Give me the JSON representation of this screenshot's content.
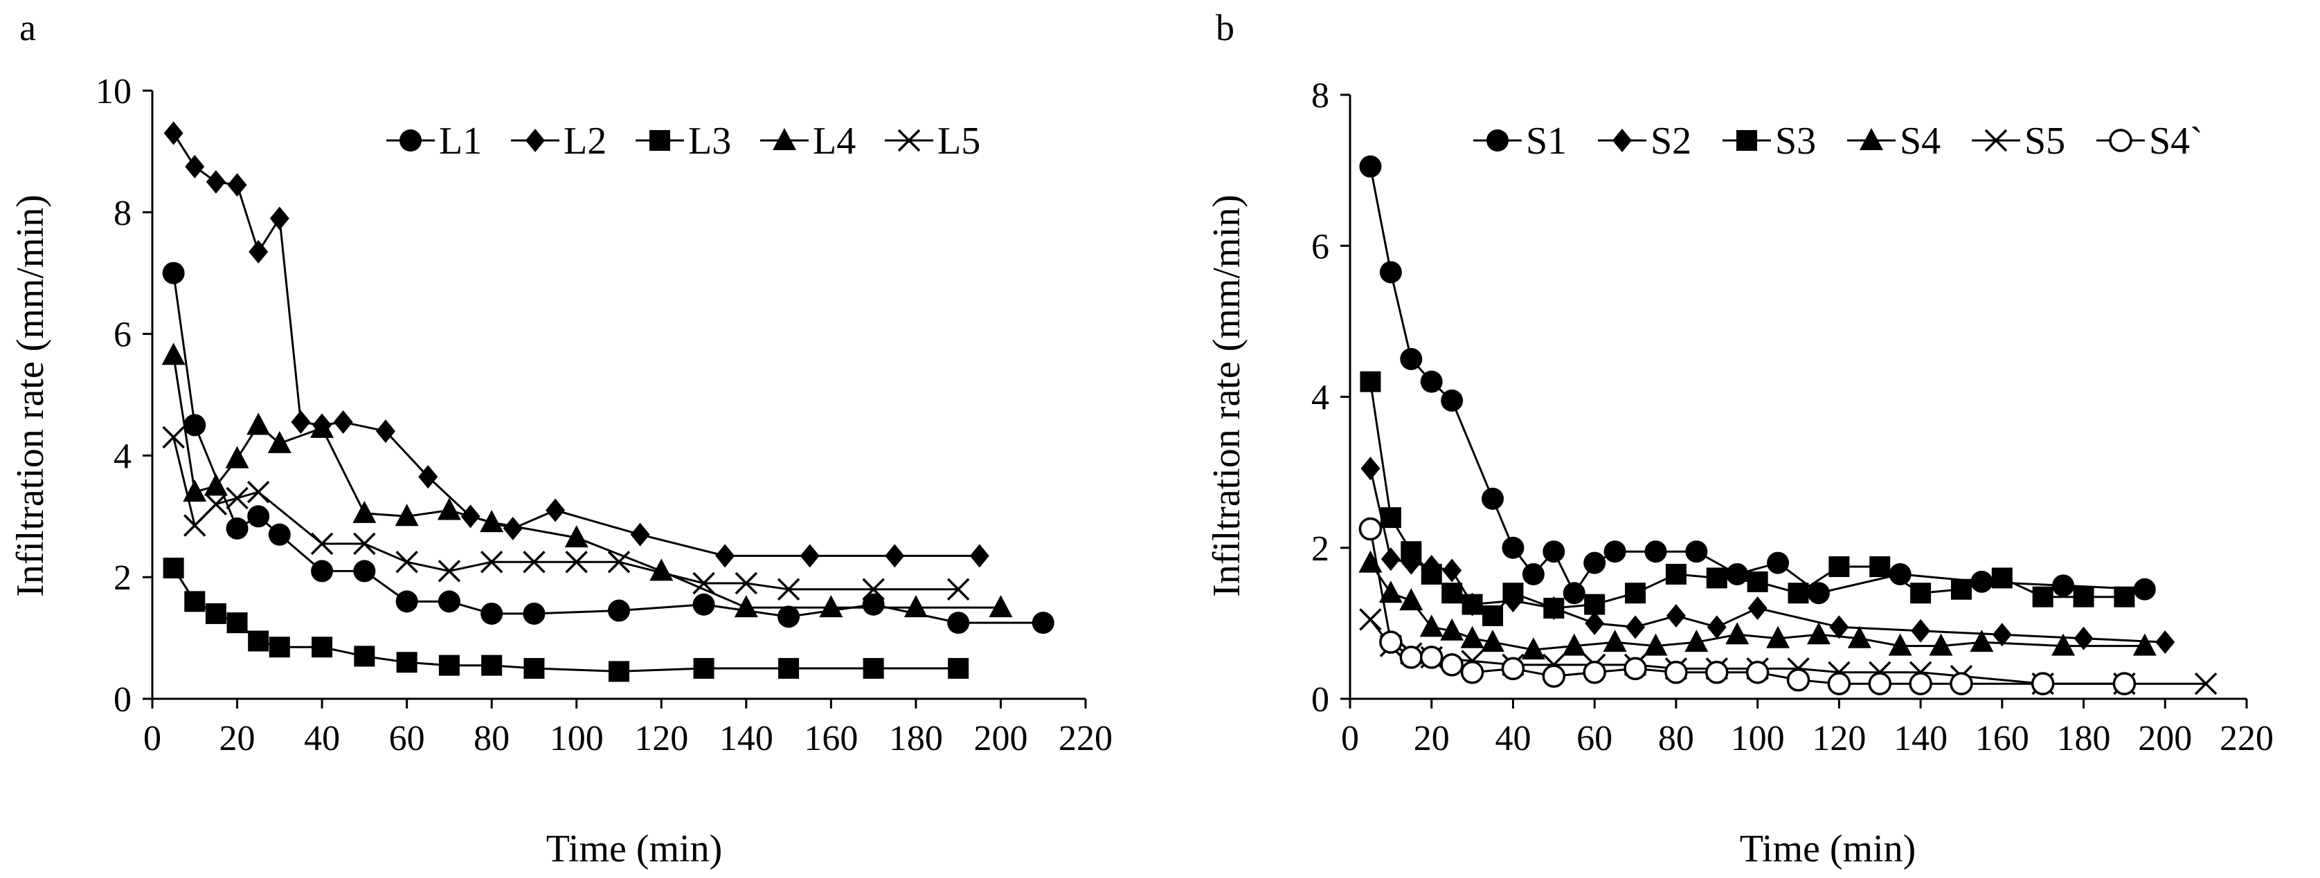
{
  "chart_data": [
    {
      "panel": "a",
      "type": "line",
      "title": "",
      "xlabel": "Time (min)",
      "ylabel": "Infiltration rate (mm/min)",
      "xlim": [
        0,
        220
      ],
      "ylim": [
        0,
        10
      ],
      "xticks": [
        0,
        20,
        40,
        60,
        80,
        100,
        120,
        140,
        160,
        180,
        200,
        220
      ],
      "yticks": [
        0,
        2,
        4,
        6,
        8,
        10
      ],
      "legend_position": "top-right",
      "series": [
        {
          "name": "L1",
          "marker": "circle-filled",
          "x": [
            5,
            10,
            20,
            25,
            30,
            40,
            50,
            60,
            70,
            80,
            90,
            110,
            130,
            150,
            170,
            190,
            210
          ],
          "y": [
            7.0,
            4.5,
            2.8,
            3.0,
            2.7,
            2.1,
            2.1,
            1.6,
            1.6,
            1.4,
            1.4,
            1.45,
            1.55,
            1.35,
            1.55,
            1.25,
            1.25
          ]
        },
        {
          "name": "L2",
          "marker": "diamond-filled",
          "x": [
            5,
            10,
            15,
            20,
            25,
            30,
            35,
            40,
            45,
            55,
            65,
            75,
            85,
            95,
            115,
            135,
            155,
            175,
            195
          ],
          "y": [
            9.3,
            8.75,
            8.5,
            8.45,
            7.35,
            7.9,
            4.55,
            4.5,
            4.55,
            4.4,
            3.65,
            3.0,
            2.8,
            3.1,
            2.7,
            2.35,
            2.35,
            2.35,
            2.35
          ]
        },
        {
          "name": "L3",
          "marker": "square-filled",
          "x": [
            5,
            10,
            15,
            20,
            25,
            30,
            40,
            50,
            60,
            70,
            80,
            90,
            110,
            130,
            150,
            170,
            190
          ],
          "y": [
            2.15,
            1.6,
            1.4,
            1.25,
            0.95,
            0.85,
            0.85,
            0.7,
            0.6,
            0.55,
            0.55,
            0.5,
            0.45,
            0.5,
            0.5,
            0.5,
            0.5
          ]
        },
        {
          "name": "L4",
          "marker": "triangle-filled",
          "x": [
            5,
            10,
            15,
            20,
            25,
            30,
            40,
            50,
            60,
            70,
            80,
            100,
            120,
            140,
            160,
            180,
            200
          ],
          "y": [
            5.65,
            3.4,
            3.5,
            3.95,
            4.5,
            4.2,
            4.45,
            3.05,
            3.0,
            3.1,
            2.9,
            2.65,
            2.1,
            1.5,
            1.5,
            1.5,
            1.5
          ]
        },
        {
          "name": "L5",
          "marker": "x",
          "x": [
            5,
            10,
            15,
            20,
            25,
            40,
            50,
            60,
            70,
            80,
            90,
            100,
            110,
            130,
            140,
            150,
            170,
            190
          ],
          "y": [
            4.3,
            2.85,
            3.2,
            3.3,
            3.4,
            2.55,
            2.55,
            2.25,
            2.1,
            2.25,
            2.25,
            2.25,
            2.25,
            1.9,
            1.9,
            1.8,
            1.8,
            1.8
          ]
        }
      ]
    },
    {
      "panel": "b",
      "type": "line",
      "title": "",
      "xlabel": "Time (min)",
      "ylabel": "Infiltration rate (mm/min)",
      "xlim": [
        0,
        220
      ],
      "ylim": [
        0,
        8
      ],
      "xticks": [
        0,
        20,
        40,
        60,
        80,
        100,
        120,
        140,
        160,
        180,
        200,
        220
      ],
      "yticks": [
        0,
        2,
        4,
        6,
        8
      ],
      "legend_position": "top-right",
      "series": [
        {
          "name": "S1",
          "marker": "circle-filled",
          "x": [
            5,
            10,
            15,
            20,
            25,
            35,
            40,
            45,
            50,
            55,
            60,
            65,
            75,
            85,
            95,
            105,
            115,
            135,
            155,
            175,
            195
          ],
          "y": [
            7.05,
            5.65,
            4.5,
            4.2,
            3.95,
            2.65,
            2.0,
            1.65,
            1.95,
            1.4,
            1.8,
            1.95,
            1.95,
            1.95,
            1.65,
            1.8,
            1.4,
            1.65,
            1.55,
            1.5,
            1.45
          ]
        },
        {
          "name": "S2",
          "marker": "diamond-filled",
          "x": [
            5,
            10,
            15,
            20,
            25,
            30,
            40,
            50,
            60,
            70,
            80,
            90,
            100,
            120,
            140,
            160,
            180,
            200
          ],
          "y": [
            3.05,
            1.85,
            1.8,
            1.75,
            1.7,
            1.25,
            1.3,
            1.2,
            1.0,
            0.95,
            1.1,
            0.95,
            1.2,
            0.95,
            0.9,
            0.85,
            0.8,
            0.75
          ]
        },
        {
          "name": "S3",
          "marker": "square-filled",
          "x": [
            5,
            10,
            15,
            20,
            25,
            30,
            35,
            40,
            50,
            60,
            70,
            80,
            90,
            100,
            110,
            120,
            130,
            140,
            150,
            160,
            170,
            180,
            190
          ],
          "y": [
            4.2,
            2.4,
            1.95,
            1.65,
            1.4,
            1.25,
            1.1,
            1.4,
            1.2,
            1.25,
            1.4,
            1.65,
            1.6,
            1.55,
            1.4,
            1.75,
            1.75,
            1.4,
            1.45,
            1.6,
            1.35,
            1.35,
            1.35
          ]
        },
        {
          "name": "S4",
          "marker": "triangle-filled",
          "x": [
            5,
            10,
            15,
            20,
            25,
            30,
            35,
            45,
            55,
            65,
            75,
            85,
            95,
            105,
            115,
            125,
            135,
            145,
            155,
            175,
            195
          ],
          "y": [
            1.8,
            1.4,
            1.3,
            0.95,
            0.9,
            0.8,
            0.75,
            0.65,
            0.7,
            0.75,
            0.7,
            0.75,
            0.85,
            0.8,
            0.85,
            0.8,
            0.7,
            0.7,
            0.75,
            0.7,
            0.7
          ]
        },
        {
          "name": "S5",
          "marker": "x",
          "x": [
            5,
            10,
            15,
            20,
            30,
            40,
            50,
            60,
            70,
            80,
            90,
            100,
            110,
            120,
            130,
            140,
            150,
            170,
            190,
            210
          ],
          "y": [
            1.05,
            0.7,
            0.6,
            0.55,
            0.5,
            0.45,
            0.45,
            0.45,
            0.45,
            0.4,
            0.4,
            0.4,
            0.4,
            0.35,
            0.35,
            0.35,
            0.3,
            0.2,
            0.2,
            0.2
          ]
        },
        {
          "name": "S4`",
          "marker": "circle-open",
          "x": [
            5,
            10,
            15,
            20,
            25,
            30,
            40,
            50,
            60,
            70,
            80,
            90,
            100,
            110,
            120,
            130,
            140,
            150,
            170,
            190
          ],
          "y": [
            2.25,
            0.75,
            0.55,
            0.55,
            0.45,
            0.35,
            0.4,
            0.3,
            0.35,
            0.4,
            0.35,
            0.35,
            0.35,
            0.25,
            0.2,
            0.2,
            0.2,
            0.2,
            0.2,
            0.2
          ]
        }
      ]
    }
  ]
}
